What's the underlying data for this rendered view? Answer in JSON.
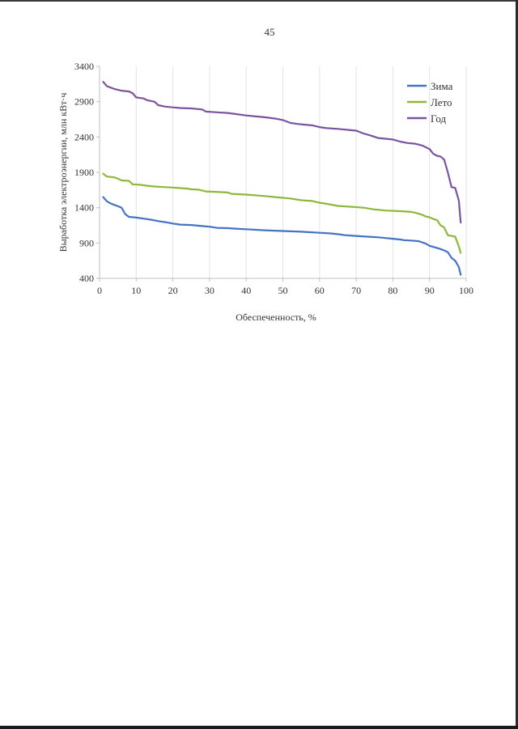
{
  "page": {
    "number": "45"
  },
  "chart_data": {
    "type": "line",
    "xlabel": "Обеспеченность, %",
    "ylabel": "Выработка электроэнергии, млн кВт·ч",
    "xlim": [
      0,
      100
    ],
    "ylim": [
      400,
      3400
    ],
    "x_ticks": [
      0,
      10,
      20,
      30,
      40,
      50,
      60,
      70,
      80,
      90,
      100
    ],
    "y_ticks": [
      400,
      900,
      1400,
      1900,
      2400,
      2900,
      3400
    ],
    "grid": "vertical",
    "legend_position": "top-right",
    "series": [
      {
        "name": "Зима",
        "color": "#4472c4",
        "points": [
          [
            1,
            1550
          ],
          [
            2,
            1490
          ],
          [
            3,
            1460
          ],
          [
            4,
            1440
          ],
          [
            5,
            1420
          ],
          [
            6,
            1400
          ],
          [
            7,
            1310
          ],
          [
            8,
            1270
          ],
          [
            10,
            1260
          ],
          [
            12,
            1245
          ],
          [
            14,
            1230
          ],
          [
            16,
            1210
          ],
          [
            18,
            1195
          ],
          [
            20,
            1175
          ],
          [
            22,
            1160
          ],
          [
            25,
            1155
          ],
          [
            28,
            1140
          ],
          [
            30,
            1130
          ],
          [
            32,
            1115
          ],
          [
            35,
            1110
          ],
          [
            38,
            1100
          ],
          [
            40,
            1095
          ],
          [
            45,
            1080
          ],
          [
            50,
            1070
          ],
          [
            55,
            1060
          ],
          [
            60,
            1045
          ],
          [
            63,
            1035
          ],
          [
            65,
            1025
          ],
          [
            67,
            1010
          ],
          [
            70,
            1000
          ],
          [
            73,
            990
          ],
          [
            76,
            980
          ],
          [
            78,
            970
          ],
          [
            80,
            960
          ],
          [
            82,
            950
          ],
          [
            83,
            940
          ],
          [
            85,
            935
          ],
          [
            87,
            925
          ],
          [
            88,
            910
          ],
          [
            89,
            890
          ],
          [
            90,
            860
          ],
          [
            91,
            845
          ],
          [
            92,
            830
          ],
          [
            93,
            815
          ],
          [
            94,
            795
          ],
          [
            95,
            770
          ],
          [
            96,
            690
          ],
          [
            97,
            650
          ],
          [
            98,
            560
          ],
          [
            98.5,
            450
          ]
        ]
      },
      {
        "name": "Лето",
        "color": "#8db83c",
        "points": [
          [
            1,
            1880
          ],
          [
            2,
            1840
          ],
          [
            3,
            1835
          ],
          [
            4,
            1830
          ],
          [
            5,
            1810
          ],
          [
            6,
            1785
          ],
          [
            8,
            1780
          ],
          [
            9,
            1730
          ],
          [
            11,
            1725
          ],
          [
            13,
            1710
          ],
          [
            15,
            1700
          ],
          [
            18,
            1690
          ],
          [
            20,
            1685
          ],
          [
            24,
            1670
          ],
          [
            25,
            1660
          ],
          [
            27,
            1655
          ],
          [
            29,
            1630
          ],
          [
            31,
            1625
          ],
          [
            35,
            1615
          ],
          [
            36,
            1595
          ],
          [
            40,
            1585
          ],
          [
            45,
            1565
          ],
          [
            48,
            1550
          ],
          [
            52,
            1530
          ],
          [
            55,
            1505
          ],
          [
            58,
            1495
          ],
          [
            60,
            1470
          ],
          [
            62,
            1455
          ],
          [
            65,
            1425
          ],
          [
            68,
            1415
          ],
          [
            72,
            1400
          ],
          [
            75,
            1375
          ],
          [
            78,
            1360
          ],
          [
            82,
            1350
          ],
          [
            85,
            1340
          ],
          [
            86,
            1330
          ],
          [
            88,
            1300
          ],
          [
            89,
            1275
          ],
          [
            90,
            1265
          ],
          [
            91,
            1240
          ],
          [
            92,
            1225
          ],
          [
            93,
            1150
          ],
          [
            94,
            1120
          ],
          [
            95,
            1010
          ],
          [
            96,
            1000
          ],
          [
            97,
            990
          ],
          [
            97.5,
            920
          ],
          [
            98,
            850
          ],
          [
            98.5,
            760
          ]
        ]
      },
      {
        "name": "Год",
        "color": "#7a54a0",
        "points": [
          [
            1,
            3180
          ],
          [
            2,
            3120
          ],
          [
            3,
            3100
          ],
          [
            4,
            3080
          ],
          [
            6,
            3055
          ],
          [
            8,
            3045
          ],
          [
            9,
            3020
          ],
          [
            10,
            2960
          ],
          [
            12,
            2945
          ],
          [
            13,
            2920
          ],
          [
            15,
            2900
          ],
          [
            16,
            2850
          ],
          [
            18,
            2830
          ],
          [
            20,
            2820
          ],
          [
            22,
            2810
          ],
          [
            25,
            2805
          ],
          [
            28,
            2790
          ],
          [
            29,
            2760
          ],
          [
            32,
            2750
          ],
          [
            35,
            2740
          ],
          [
            37,
            2725
          ],
          [
            40,
            2705
          ],
          [
            42,
            2695
          ],
          [
            45,
            2680
          ],
          [
            48,
            2660
          ],
          [
            50,
            2640
          ],
          [
            52,
            2600
          ],
          [
            54,
            2585
          ],
          [
            56,
            2575
          ],
          [
            58,
            2565
          ],
          [
            60,
            2540
          ],
          [
            62,
            2525
          ],
          [
            65,
            2515
          ],
          [
            68,
            2500
          ],
          [
            70,
            2490
          ],
          [
            72,
            2450
          ],
          [
            74,
            2420
          ],
          [
            76,
            2385
          ],
          [
            78,
            2375
          ],
          [
            80,
            2365
          ],
          [
            82,
            2335
          ],
          [
            84,
            2315
          ],
          [
            86,
            2305
          ],
          [
            88,
            2280
          ],
          [
            90,
            2230
          ],
          [
            91,
            2165
          ],
          [
            92,
            2135
          ],
          [
            93,
            2125
          ],
          [
            94,
            2080
          ],
          [
            95,
            1900
          ],
          [
            96,
            1690
          ],
          [
            97,
            1680
          ],
          [
            98,
            1500
          ],
          [
            98.5,
            1190
          ]
        ]
      }
    ]
  }
}
